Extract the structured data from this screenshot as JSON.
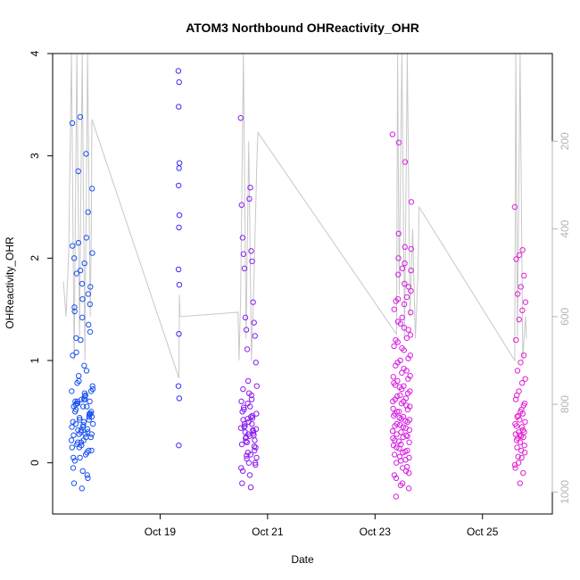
{
  "chart_data": {
    "type": "scatter",
    "title": "ATOM3 Northbound OHReactivity_OHR",
    "xlabel": "Date",
    "ylabel": "OHReactivity_OHR",
    "x_ticks": [
      "Oct 19",
      "Oct 21",
      "Oct 23",
      "Oct 25"
    ],
    "x_tick_days": [
      19,
      21,
      23,
      25
    ],
    "xlim_days": [
      17.0,
      26.3
    ],
    "ylim": [
      -0.5,
      4.0
    ],
    "y_ticks": [
      0,
      1,
      2,
      3,
      4
    ],
    "y2_ticks": [
      200,
      400,
      600,
      800,
      1000
    ],
    "y2lim": [
      1050,
      0
    ],
    "grid": false,
    "legend": "none",
    "colors": {
      "flight1": "#1a52ee",
      "flight2": "#3a2cf2",
      "flight3": "#8a1cf0",
      "flight4": "#d61fe2",
      "flight5": "#e21ed2",
      "altitude_line": "#c8c8c8"
    },
    "series": [
      {
        "day": 17.55,
        "span": 0.4,
        "color": "#1a52ee",
        "values": [
          0.22,
          0.15,
          -0.12,
          0.05,
          0.32,
          0.45,
          0.6,
          0.55,
          0.7,
          0.78,
          0.62,
          0.38,
          0.28,
          0.1,
          -0.05,
          0.2,
          0.42,
          0.5,
          0.35,
          0.25,
          0.18,
          0.65,
          0.72,
          0.8,
          0.55,
          0.4,
          0.3,
          0.12,
          0.02,
          -0.08,
          0.48,
          0.58,
          0.68,
          0.75,
          0.85,
          0.9,
          1.05,
          1.2,
          1.35,
          1.48,
          1.6,
          1.72,
          1.85,
          1.95,
          2.05,
          2.15,
          2.2,
          2.12,
          1.88,
          1.65,
          1.52,
          1.42,
          1.28,
          1.08,
          0.95,
          2.68,
          2.85,
          3.02,
          3.32,
          3.38,
          2.45,
          2.0,
          1.75,
          1.55,
          1.22,
          0.62,
          0.45,
          0.32,
          0.25,
          0.15,
          0.05,
          -0.15,
          -0.2,
          -0.25,
          0.6,
          0.52,
          0.4,
          0.28,
          0.2,
          0.08,
          0.35,
          0.42,
          0.3,
          0.55,
          0.62,
          0.48,
          0.38,
          0.22,
          0.12,
          0.58,
          0.66,
          0.7,
          0.44,
          0.33,
          0.27,
          0.17,
          0.47,
          0.57,
          0.37,
          0.5,
          0.6,
          0.28
        ]
      },
      {
        "day": 19.35,
        "span": 0.02,
        "color": "#3a2cf2",
        "values": [
          3.83,
          3.72,
          3.48,
          2.93,
          2.88,
          2.71,
          2.42,
          2.3,
          1.89,
          1.74,
          1.26,
          0.75,
          0.63,
          0.17
        ]
      },
      {
        "day": 20.65,
        "span": 0.3,
        "color": "#8a1cf0",
        "values": [
          3.37,
          2.58,
          2.52,
          2.69,
          2.2,
          2.07,
          2.04,
          1.97,
          1.9,
          1.57,
          1.42,
          1.37,
          1.3,
          1.24,
          1.11,
          0.98,
          0.8,
          0.75,
          0.68,
          0.6,
          0.55,
          0.5,
          0.45,
          0.42,
          0.38,
          0.35,
          0.32,
          0.3,
          0.27,
          0.25,
          0.22,
          0.2,
          0.15,
          0.1,
          0.05,
          0.0,
          -0.05,
          -0.12,
          -0.2,
          -0.24,
          0.72,
          0.62,
          0.52,
          0.44,
          0.36,
          0.29,
          0.21,
          0.12,
          0.04,
          -0.02,
          0.58,
          0.48,
          0.4,
          0.34,
          0.26,
          0.18,
          0.08,
          -0.08,
          0.66,
          0.54,
          0.46,
          0.38,
          0.31,
          0.24,
          0.16,
          0.07,
          0.0,
          0.43,
          0.33,
          0.28
        ]
      },
      {
        "day": 23.5,
        "span": 0.35,
        "color": "#d61fe2",
        "values": [
          3.21,
          3.13,
          2.94,
          2.55,
          2.24,
          2.11,
          2.09,
          2.0,
          1.95,
          1.88,
          1.84,
          1.75,
          1.68,
          1.6,
          1.55,
          1.47,
          1.38,
          1.32,
          1.25,
          1.18,
          1.1,
          1.05,
          0.98,
          0.92,
          0.85,
          0.8,
          0.75,
          0.7,
          0.65,
          0.6,
          0.55,
          0.5,
          0.45,
          0.42,
          0.38,
          0.35,
          0.32,
          0.28,
          0.25,
          0.2,
          0.15,
          0.1,
          0.05,
          0.0,
          -0.05,
          -0.1,
          -0.15,
          -0.2,
          -0.25,
          -0.33,
          1.9,
          1.72,
          1.58,
          1.42,
          1.3,
          1.2,
          1.12,
          1.02,
          0.95,
          0.88,
          0.82,
          0.76,
          0.72,
          0.68,
          0.62,
          0.58,
          0.52,
          0.48,
          0.43,
          0.4,
          0.36,
          0.3,
          0.26,
          0.22,
          0.18,
          0.12,
          0.08,
          0.02,
          -0.04,
          -0.12,
          -0.22,
          1.62,
          1.5,
          1.36,
          1.22,
          1.14,
          1.0,
          0.9,
          0.78,
          0.66,
          0.56,
          0.46,
          0.37,
          0.27,
          0.17,
          0.06,
          -0.08,
          0.84,
          0.74,
          0.63,
          0.53,
          0.44,
          0.34,
          0.24,
          0.14,
          0.03,
          0.6,
          0.5,
          0.41,
          0.31,
          0.21,
          0.11
        ]
      },
      {
        "day": 25.7,
        "span": 0.2,
        "color": "#e21ed2",
        "values": [
          2.5,
          2.08,
          2.03,
          1.99,
          1.83,
          1.72,
          1.65,
          1.57,
          1.49,
          1.4,
          1.2,
          1.05,
          0.98,
          0.9,
          0.82,
          0.78,
          0.7,
          0.62,
          0.56,
          0.5,
          0.45,
          0.4,
          0.35,
          0.3,
          0.28,
          0.25,
          0.2,
          0.15,
          0.1,
          0.05,
          0.0,
          -0.05,
          -0.1,
          -0.2,
          0.66,
          0.58,
          0.52,
          0.46,
          0.38,
          0.32,
          0.27,
          0.22,
          0.17,
          0.12,
          0.06,
          -0.02,
          0.48,
          0.42,
          0.36,
          0.3,
          0.26,
          0.24
        ]
      }
    ],
    "altitude": {
      "label": "",
      "days": [
        17.2,
        17.25,
        17.3,
        17.35,
        17.4,
        17.45,
        17.5,
        17.55,
        17.6,
        17.65,
        17.7,
        17.72,
        17.73,
        19.35,
        19.36,
        19.37,
        20.45,
        20.47,
        20.5,
        20.55,
        20.6,
        20.65,
        20.7,
        20.75,
        20.8,
        20.82,
        23.4,
        23.42,
        23.45,
        23.5,
        23.55,
        23.6,
        23.65,
        23.7,
        23.75,
        23.8,
        23.82,
        25.6,
        25.62,
        25.65,
        25.7,
        25.75,
        25.8,
        25.82
      ],
      "values": [
        520,
        600,
        450,
        0,
        700,
        0,
        650,
        0,
        700,
        0,
        600,
        400,
        150,
        740,
        550,
        600,
        590,
        700,
        550,
        0,
        650,
        200,
        700,
        500,
        250,
        180,
        640,
        0,
        550,
        0,
        650,
        0,
        600,
        400,
        650,
        500,
        350,
        700,
        0,
        650,
        0,
        700,
        600,
        650
      ]
    }
  }
}
